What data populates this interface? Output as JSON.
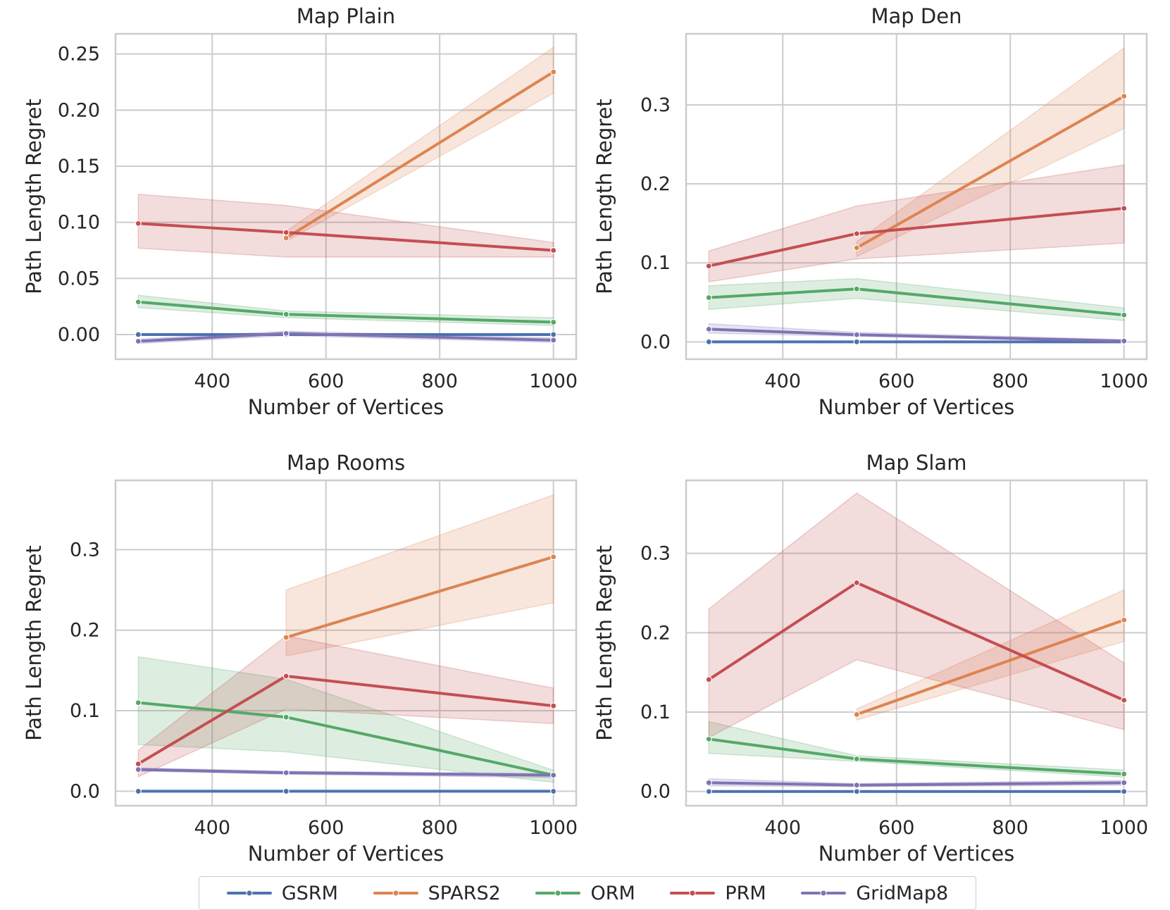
{
  "chart_data": {
    "type": "line",
    "colors": {
      "GSRM": "#4c72b0",
      "SPARS2": "#dd8452",
      "ORM": "#55a868",
      "PRM": "#c44e52",
      "GridMap8": "#8172b3"
    },
    "legend": [
      "GSRM",
      "SPARS2",
      "ORM",
      "PRM",
      "GridMap8"
    ],
    "panels": [
      {
        "title": "Map Plain",
        "xlabel": "Number of Vertices",
        "ylabel": "Path Length Regret",
        "xlim": [
          230,
          1040
        ],
        "ylim": [
          -0.022,
          0.268
        ],
        "xticks": [
          400,
          600,
          800,
          1000
        ],
        "xtick_labels": [
          "400",
          "600",
          "800",
          "1000"
        ],
        "yticks": [
          0.0,
          0.05,
          0.1,
          0.15,
          0.2,
          0.25
        ],
        "ytick_labels": [
          "0.00",
          "0.05",
          "0.10",
          "0.15",
          "0.20",
          "0.25"
        ],
        "series": [
          {
            "name": "GSRM",
            "x": [
              270,
              530,
              1000
            ],
            "values": [
              0.0,
              0.0,
              0.0
            ],
            "lower": [
              0.0,
              0.0,
              0.0
            ],
            "upper": [
              0.0,
              0.0,
              0.0
            ]
          },
          {
            "name": "SPARS2",
            "x": [
              530,
              1000
            ],
            "values": [
              0.086,
              0.234
            ],
            "lower": [
              0.083,
              0.215
            ],
            "upper": [
              0.092,
              0.256
            ]
          },
          {
            "name": "ORM",
            "x": [
              270,
              530,
              1000
            ],
            "values": [
              0.029,
              0.018,
              0.011
            ],
            "lower": [
              0.024,
              0.015,
              0.008
            ],
            "upper": [
              0.035,
              0.021,
              0.015
            ]
          },
          {
            "name": "PRM",
            "x": [
              270,
              530,
              1000
            ],
            "values": [
              0.099,
              0.091,
              0.075
            ],
            "lower": [
              0.077,
              0.069,
              0.069
            ],
            "upper": [
              0.125,
              0.115,
              0.082
            ]
          },
          {
            "name": "GridMap8",
            "x": [
              270,
              530,
              1000
            ],
            "values": [
              -0.006,
              0.001,
              -0.005
            ],
            "lower": [
              -0.008,
              -0.001,
              -0.007
            ],
            "upper": [
              -0.004,
              0.003,
              -0.003
            ]
          }
        ]
      },
      {
        "title": "Map Den",
        "xlabel": "Number of Vertices",
        "ylabel": "Path Length Regret",
        "xlim": [
          230,
          1040
        ],
        "ylim": [
          -0.022,
          0.39
        ],
        "xticks": [
          400,
          600,
          800,
          1000
        ],
        "xtick_labels": [
          "400",
          "600",
          "800",
          "1000"
        ],
        "yticks": [
          0.0,
          0.1,
          0.2,
          0.3
        ],
        "ytick_labels": [
          "0.0",
          "0.1",
          "0.2",
          "0.3"
        ],
        "series": [
          {
            "name": "GSRM",
            "x": [
              270,
              530,
              1000
            ],
            "values": [
              0.0,
              0.0,
              0.0
            ],
            "lower": [
              0.0,
              0.0,
              0.0
            ],
            "upper": [
              0.0,
              0.0,
              0.0
            ]
          },
          {
            "name": "SPARS2",
            "x": [
              530,
              1000
            ],
            "values": [
              0.119,
              0.311
            ],
            "lower": [
              0.108,
              0.27
            ],
            "upper": [
              0.127,
              0.372
            ]
          },
          {
            "name": "ORM",
            "x": [
              270,
              530,
              1000
            ],
            "values": [
              0.056,
              0.067,
              0.034
            ],
            "lower": [
              0.041,
              0.055,
              0.027
            ],
            "upper": [
              0.071,
              0.08,
              0.043
            ]
          },
          {
            "name": "PRM",
            "x": [
              270,
              530,
              1000
            ],
            "values": [
              0.096,
              0.137,
              0.169
            ],
            "lower": [
              0.076,
              0.105,
              0.125
            ],
            "upper": [
              0.115,
              0.172,
              0.224
            ]
          },
          {
            "name": "GridMap8",
            "x": [
              270,
              530,
              1000
            ],
            "values": [
              0.016,
              0.009,
              0.001
            ],
            "lower": [
              0.011,
              0.007,
              0.0
            ],
            "upper": [
              0.023,
              0.012,
              0.003
            ]
          }
        ]
      },
      {
        "title": "Map Rooms",
        "xlabel": "Number of Vertices",
        "ylabel": "Path Length Regret",
        "xlim": [
          230,
          1040
        ],
        "ylim": [
          -0.018,
          0.386
        ],
        "xticks": [
          400,
          600,
          800,
          1000
        ],
        "xtick_labels": [
          "400",
          "600",
          "800",
          "1000"
        ],
        "yticks": [
          0.0,
          0.1,
          0.2,
          0.3
        ],
        "ytick_labels": [
          "0.0",
          "0.1",
          "0.2",
          "0.3"
        ],
        "series": [
          {
            "name": "GSRM",
            "x": [
              270,
              530,
              1000
            ],
            "values": [
              0.0,
              0.0,
              0.0
            ],
            "lower": [
              0.0,
              0.0,
              0.0
            ],
            "upper": [
              0.0,
              0.0,
              0.0
            ]
          },
          {
            "name": "SPARS2",
            "x": [
              530,
              1000
            ],
            "values": [
              0.191,
              0.291
            ],
            "lower": [
              0.168,
              0.234
            ],
            "upper": [
              0.25,
              0.368
            ]
          },
          {
            "name": "ORM",
            "x": [
              270,
              530,
              1000
            ],
            "values": [
              0.11,
              0.092,
              0.02
            ],
            "lower": [
              0.058,
              0.049,
              0.011
            ],
            "upper": [
              0.167,
              0.139,
              0.026
            ]
          },
          {
            "name": "PRM",
            "x": [
              270,
              530,
              1000
            ],
            "values": [
              0.034,
              0.143,
              0.106
            ],
            "lower": [
              0.018,
              0.102,
              0.084
            ],
            "upper": [
              0.051,
              0.193,
              0.128
            ]
          },
          {
            "name": "GridMap8",
            "x": [
              270,
              530,
              1000
            ],
            "values": [
              0.027,
              0.023,
              0.02
            ],
            "lower": [
              0.025,
              0.021,
              0.017
            ],
            "upper": [
              0.029,
              0.025,
              0.022
            ]
          }
        ]
      },
      {
        "title": "Map Slam",
        "xlabel": "Number of Vertices",
        "ylabel": "Path Length Regret",
        "xlim": [
          230,
          1040
        ],
        "ylim": [
          -0.018,
          0.392
        ],
        "xticks": [
          400,
          600,
          800,
          1000
        ],
        "xtick_labels": [
          "400",
          "600",
          "800",
          "1000"
        ],
        "yticks": [
          0.0,
          0.1,
          0.2,
          0.3
        ],
        "ytick_labels": [
          "0.0",
          "0.1",
          "0.2",
          "0.3"
        ],
        "series": [
          {
            "name": "GSRM",
            "x": [
              270,
              530,
              1000
            ],
            "values": [
              0.0,
              0.0,
              0.0
            ],
            "lower": [
              0.0,
              0.0,
              0.0
            ],
            "upper": [
              0.0,
              0.0,
              0.0
            ]
          },
          {
            "name": "SPARS2",
            "x": [
              530,
              1000
            ],
            "values": [
              0.097,
              0.216
            ],
            "lower": [
              0.09,
              0.189
            ],
            "upper": [
              0.104,
              0.254
            ]
          },
          {
            "name": "ORM",
            "x": [
              270,
              530,
              1000
            ],
            "values": [
              0.066,
              0.041,
              0.022
            ],
            "lower": [
              0.048,
              0.038,
              0.018
            ],
            "upper": [
              0.088,
              0.045,
              0.027
            ]
          },
          {
            "name": "PRM",
            "x": [
              270,
              530,
              1000
            ],
            "values": [
              0.141,
              0.263,
              0.115
            ],
            "lower": [
              0.068,
              0.166,
              0.078
            ],
            "upper": [
              0.23,
              0.376,
              0.162
            ]
          },
          {
            "name": "GridMap8",
            "x": [
              270,
              530,
              1000
            ],
            "values": [
              0.011,
              0.008,
              0.011
            ],
            "lower": [
              0.007,
              0.006,
              0.008
            ],
            "upper": [
              0.016,
              0.01,
              0.014
            ]
          }
        ]
      }
    ]
  }
}
